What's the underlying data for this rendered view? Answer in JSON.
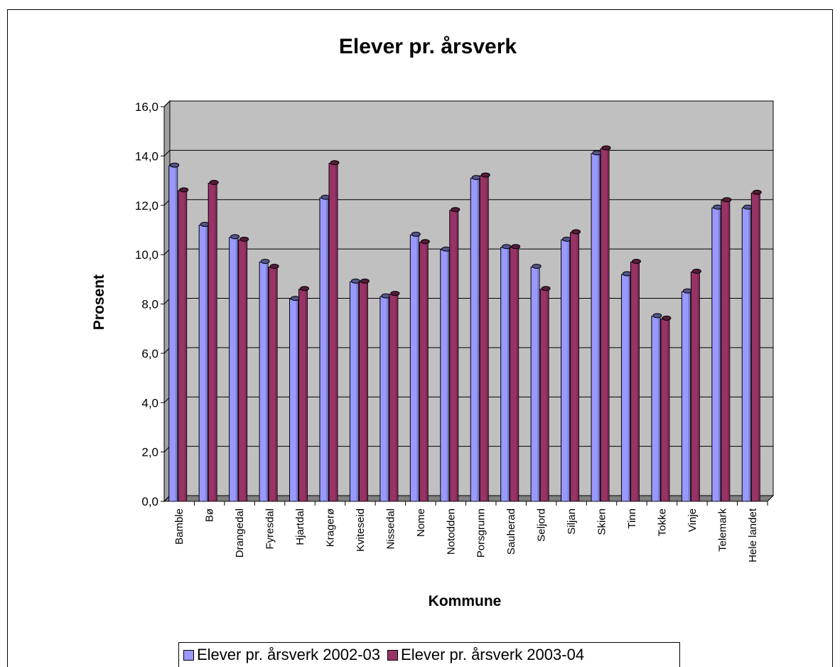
{
  "chart_data": {
    "type": "bar",
    "title": "Elever pr. årsverk",
    "xlabel": "Kommune",
    "ylabel": "Prosent",
    "ylim": [
      0,
      16
    ],
    "yticks": [
      "0,0",
      "2,0",
      "4,0",
      "6,0",
      "8,0",
      "10,0",
      "12,0",
      "14,0",
      "16,0"
    ],
    "grid": true,
    "legend_position": "bottom",
    "categories": [
      "Bamble",
      "Bø",
      "Drangedal",
      "Fyresdal",
      "Hjartdal",
      "Kragerø",
      "Kviteseid",
      "Nissedal",
      "Nome",
      "Notodden",
      "Porsgrunn",
      "Sauherad",
      "Seljord",
      "Siljan",
      "Skien",
      "Tinn",
      "Tokke",
      "Vinje",
      "Telemark",
      "Hele landet"
    ],
    "series": [
      {
        "name": "Elever pr. årsverk  2002-03",
        "color": "#9999ff",
        "values": [
          13.6,
          11.2,
          10.7,
          9.7,
          8.2,
          12.3,
          8.9,
          8.3,
          10.8,
          10.2,
          13.1,
          10.3,
          9.5,
          10.6,
          14.1,
          9.2,
          7.5,
          8.5,
          11.9,
          11.9
        ]
      },
      {
        "name": "Elever pr. årsverk  2003-04",
        "color": "#993366",
        "values": [
          12.6,
          12.9,
          10.6,
          9.5,
          8.6,
          13.7,
          8.9,
          8.4,
          10.5,
          11.8,
          13.2,
          10.3,
          8.6,
          10.9,
          14.3,
          9.7,
          7.4,
          9.3,
          12.2,
          12.5
        ]
      }
    ],
    "colors": {
      "plot_back": "#c0c0c0",
      "floor": "#808080",
      "gridline": "#000000"
    }
  }
}
